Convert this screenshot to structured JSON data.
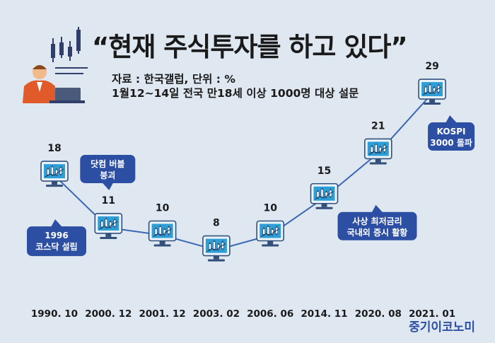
{
  "title": "“현재 주식투자를 하고 있다”",
  "subtitle_source": "자료 : 한국갤럽, 단위 : %",
  "subtitle_survey": "1월12~14일 전국 만18세 이상 1000명 대상 설문",
  "brand": "중기이코노미",
  "colors": {
    "background": "#dfe8f1",
    "line": "#3a67b3",
    "callout": "#2d4fa3",
    "monitor": "#2e9fd6"
  },
  "chart_data": {
    "type": "line",
    "categories": [
      "1990. 10",
      "2000. 12",
      "2001. 12",
      "2003. 02",
      "2006. 06",
      "2014. 11",
      "2020. 08",
      "2021. 01"
    ],
    "values": [
      18,
      11,
      10,
      8,
      10,
      15,
      21,
      29
    ],
    "title": "“현재 주식투자를 하고 있다”",
    "unit": "%",
    "annotations": [
      {
        "category": "1990. 10",
        "lines": [
          "1996",
          "코스닥 설립"
        ]
      },
      {
        "category": "2000. 12",
        "lines": [
          "닷컴 버블",
          "붕괴"
        ]
      },
      {
        "category": "2014. 11",
        "lines": [
          "사상 최저금리",
          "국내외 증시 활황"
        ]
      },
      {
        "category": "2021. 01",
        "lines": [
          "KOSPI",
          "3000 돌파"
        ]
      }
    ]
  }
}
